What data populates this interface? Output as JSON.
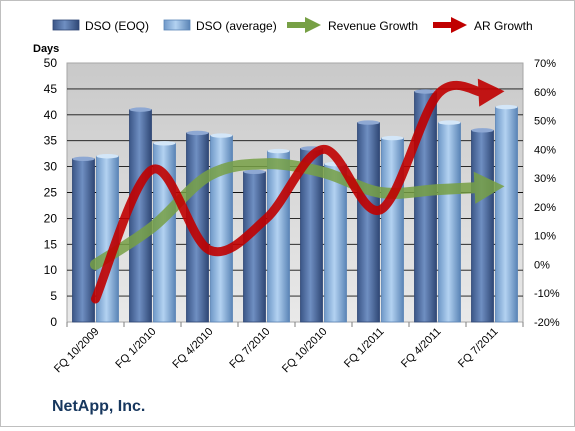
{
  "company_label": "NetApp, Inc.",
  "chart_data": {
    "type": "bar",
    "y_left_label": "Days",
    "y_left_range": [
      0,
      50
    ],
    "y_left_ticks": [
      "0",
      "5",
      "10",
      "15",
      "20",
      "25",
      "30",
      "35",
      "40",
      "45",
      "50"
    ],
    "y_right_range": [
      -20,
      70
    ],
    "y_right_ticks": [
      "-20%",
      "-10%",
      "0%",
      "10%",
      "20%",
      "30%",
      "40%",
      "50%",
      "60%",
      "70%"
    ],
    "categories": [
      "FQ 10/2009",
      "FQ 1/2010",
      "FQ 4/2010",
      "FQ 7/2010",
      "FQ 10/2010",
      "FQ 1/2011",
      "FQ 4/2011",
      "FQ 7/2011"
    ],
    "grid": true,
    "legend_position": "top",
    "series": [
      {
        "name": "DSO (EOQ)",
        "kind": "bar",
        "axis": "left",
        "color": "#4f6fa0",
        "values": [
          31.5,
          41,
          36.5,
          29,
          33.5,
          38.5,
          44.5,
          37
        ]
      },
      {
        "name": "DSO (average)",
        "kind": "bar",
        "axis": "left",
        "color": "#8cb4e0",
        "values": [
          32,
          34.5,
          36,
          33,
          30.5,
          35.5,
          38.5,
          41.5
        ]
      },
      {
        "name": "Revenue Growth",
        "kind": "arrow-line",
        "axis": "right",
        "color": "#77a045",
        "values": [
          0,
          13,
          31,
          35,
          32,
          25,
          26,
          27
        ]
      },
      {
        "name": "AR Growth",
        "kind": "arrow-line",
        "axis": "right",
        "color": "#c00000",
        "values": [
          -12,
          33,
          5,
          16,
          40,
          19,
          59,
          60
        ]
      }
    ]
  }
}
